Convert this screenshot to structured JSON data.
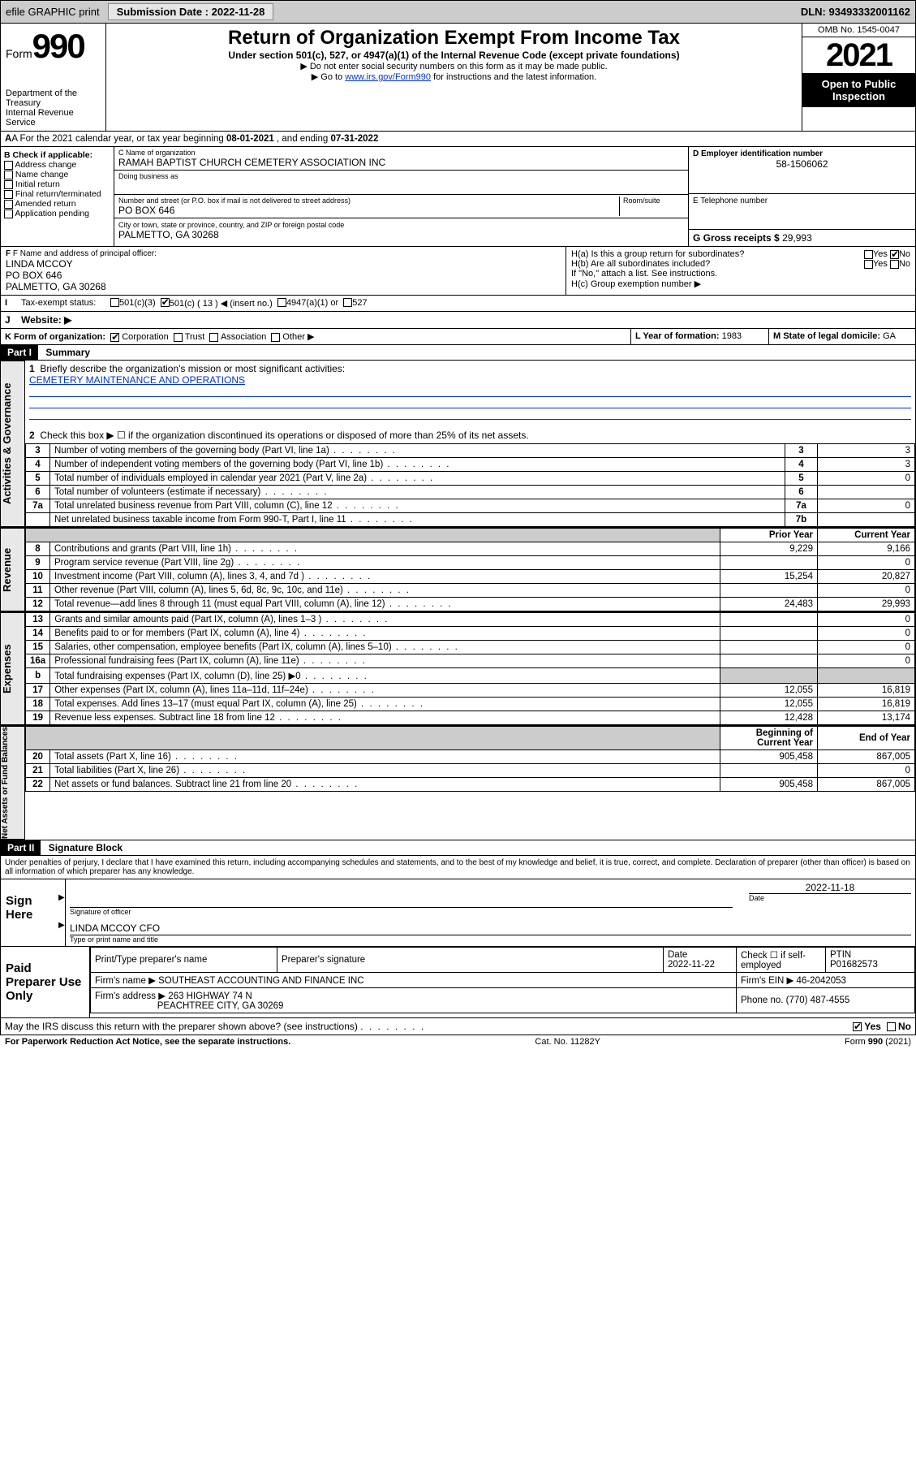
{
  "toolbar": {
    "efile": "efile GRAPHIC print",
    "submission_label": "Submission Date : 2022-11-28",
    "dln_label": "DLN: 93493332001162"
  },
  "header": {
    "form_word": "Form",
    "form_num": "990",
    "title": "Return of Organization Exempt From Income Tax",
    "sub1": "Under section 501(c), 527, or 4947(a)(1) of the Internal Revenue Code (except private foundations)",
    "sub2": "▶ Do not enter social security numbers on this form as it may be made public.",
    "sub3_pre": "▶ Go to ",
    "sub3_link": "www.irs.gov/Form990",
    "sub3_post": " for instructions and the latest information.",
    "dept": "Department of the Treasury",
    "irs": "Internal Revenue Service",
    "omb": "OMB No. 1545-0047",
    "year": "2021",
    "open": "Open to Public Inspection"
  },
  "A": {
    "text_pre": "A For the 2021 calendar year, or tax year beginning ",
    "begin": "08-01-2021",
    "mid": " , and ending ",
    "end": "07-31-2022"
  },
  "B": {
    "label": "B Check if applicable:",
    "items": [
      "Address change",
      "Name change",
      "Initial return",
      "Final return/terminated",
      "Amended return",
      "Application pending"
    ]
  },
  "C": {
    "name_lbl": "C Name of organization",
    "name": "RAMAH BAPTIST CHURCH CEMETERY ASSOCIATION INC",
    "dba_lbl": "Doing business as",
    "addr_lbl": "Number and street (or P.O. box if mail is not delivered to street address)",
    "room_lbl": "Room/suite",
    "addr": "PO BOX 646",
    "city_lbl": "City or town, state or province, country, and ZIP or foreign postal code",
    "city": "PALMETTO, GA  30268"
  },
  "D": {
    "lbl": "D Employer identification number",
    "val": "58-1506062"
  },
  "E": {
    "lbl": "E Telephone number",
    "val": ""
  },
  "G": {
    "lbl": "G Gross receipts $",
    "val": "29,993"
  },
  "F": {
    "lbl": "F Name and address of principal officer:",
    "name": "LINDA MCCOY",
    "addr1": "PO BOX 646",
    "addr2": "PALMETTO, GA  30268"
  },
  "H": {
    "a": "H(a)  Is this a group return for subordinates?",
    "b": "H(b)  Are all subordinates included?",
    "b_note": "If \"No,\" attach a list. See instructions.",
    "c": "H(c)  Group exemption number ▶",
    "yes": "Yes",
    "no": "No"
  },
  "I": {
    "lbl": "Tax-exempt status:",
    "opts": [
      "501(c)(3)",
      "501(c) ( 13 ) ◀ (insert no.)",
      "4947(a)(1) or",
      "527"
    ],
    "checked_index": 1
  },
  "J": {
    "lbl": "Website: ▶"
  },
  "K": {
    "lbl": "K Form of organization:",
    "opts": [
      "Corporation",
      "Trust",
      "Association",
      "Other ▶"
    ],
    "checked_index": 0
  },
  "L": {
    "lbl": "L Year of formation:",
    "val": "1983"
  },
  "M": {
    "lbl": "M State of legal domicile:",
    "val": "GA"
  },
  "partI": {
    "header": "Part I",
    "title": "Summary"
  },
  "summary": {
    "line1_lbl": "Briefly describe the organization's mission or most significant activities:",
    "line1_val": "CEMETERY MAINTENANCE AND OPERATIONS",
    "line2": "Check this box ▶ ☐  if the organization discontinued its operations or disposed of more than 25% of its net assets.",
    "lines_gov": [
      {
        "n": "3",
        "t": "Number of voting members of the governing body (Part VI, line 1a)",
        "box": "3",
        "v": "3"
      },
      {
        "n": "4",
        "t": "Number of independent voting members of the governing body (Part VI, line 1b)",
        "box": "4",
        "v": "3"
      },
      {
        "n": "5",
        "t": "Total number of individuals employed in calendar year 2021 (Part V, line 2a)",
        "box": "5",
        "v": "0"
      },
      {
        "n": "6",
        "t": "Total number of volunteers (estimate if necessary)",
        "box": "6",
        "v": ""
      },
      {
        "n": "7a",
        "t": "Total unrelated business revenue from Part VIII, column (C), line 12",
        "box": "7a",
        "v": "0"
      },
      {
        "n": "",
        "t": "Net unrelated business taxable income from Form 990-T, Part I, line 11",
        "box": "7b",
        "v": ""
      }
    ],
    "col_prior": "Prior Year",
    "col_current": "Current Year",
    "revenue": [
      {
        "n": "8",
        "t": "Contributions and grants (Part VIII, line 1h)",
        "p": "9,229",
        "c": "9,166"
      },
      {
        "n": "9",
        "t": "Program service revenue (Part VIII, line 2g)",
        "p": "",
        "c": "0"
      },
      {
        "n": "10",
        "t": "Investment income (Part VIII, column (A), lines 3, 4, and 7d )",
        "p": "15,254",
        "c": "20,827"
      },
      {
        "n": "11",
        "t": "Other revenue (Part VIII, column (A), lines 5, 6d, 8c, 9c, 10c, and 11e)",
        "p": "",
        "c": "0"
      },
      {
        "n": "12",
        "t": "Total revenue—add lines 8 through 11 (must equal Part VIII, column (A), line 12)",
        "p": "24,483",
        "c": "29,993"
      }
    ],
    "expenses": [
      {
        "n": "13",
        "t": "Grants and similar amounts paid (Part IX, column (A), lines 1–3 )",
        "p": "",
        "c": "0"
      },
      {
        "n": "14",
        "t": "Benefits paid to or for members (Part IX, column (A), line 4)",
        "p": "",
        "c": "0"
      },
      {
        "n": "15",
        "t": "Salaries, other compensation, employee benefits (Part IX, column (A), lines 5–10)",
        "p": "",
        "c": "0"
      },
      {
        "n": "16a",
        "t": "Professional fundraising fees (Part IX, column (A), line 11e)",
        "p": "",
        "c": "0"
      },
      {
        "n": "b",
        "t": "Total fundraising expenses (Part IX, column (D), line 25) ▶0",
        "p": "shade",
        "c": "shade"
      },
      {
        "n": "17",
        "t": "Other expenses (Part IX, column (A), lines 11a–11d, 11f–24e)",
        "p": "12,055",
        "c": "16,819"
      },
      {
        "n": "18",
        "t": "Total expenses. Add lines 13–17 (must equal Part IX, column (A), line 25)",
        "p": "12,055",
        "c": "16,819"
      },
      {
        "n": "19",
        "t": "Revenue less expenses. Subtract line 18 from line 12",
        "p": "12,428",
        "c": "13,174"
      }
    ],
    "col_begin": "Beginning of Current Year",
    "col_end": "End of Year",
    "netassets": [
      {
        "n": "20",
        "t": "Total assets (Part X, line 16)",
        "p": "905,458",
        "c": "867,005"
      },
      {
        "n": "21",
        "t": "Total liabilities (Part X, line 26)",
        "p": "",
        "c": "0"
      },
      {
        "n": "22",
        "t": "Net assets or fund balances. Subtract line 21 from line 20",
        "p": "905,458",
        "c": "867,005"
      }
    ],
    "tabs": {
      "gov": "Activities & Governance",
      "rev": "Revenue",
      "exp": "Expenses",
      "net": "Net Assets or Fund Balances"
    }
  },
  "partII": {
    "header": "Part II",
    "title": "Signature Block"
  },
  "sig": {
    "penalty": "Under penalties of perjury, I declare that I have examined this return, including accompanying schedules and statements, and to the best of my knowledge and belief, it is true, correct, and complete. Declaration of preparer (other than officer) is based on all information of which preparer has any knowledge.",
    "sign_here": "Sign Here",
    "sig_officer_lbl": "Signature of officer",
    "date_lbl": "Date",
    "date_val": "2022-11-18",
    "name_title": "LINDA MCCOY CFO",
    "name_title_lbl": "Type or print name and title",
    "paid": "Paid Preparer Use Only",
    "prep_name_lbl": "Print/Type preparer's name",
    "prep_sig_lbl": "Preparer's signature",
    "prep_date_lbl": "Date",
    "prep_date": "2022-11-22",
    "self_emp": "Check ☐ if self-employed",
    "ptin_lbl": "PTIN",
    "ptin": "P01682573",
    "firm_name_lbl": "Firm's name   ▶",
    "firm_name": "SOUTHEAST ACCOUNTING AND FINANCE INC",
    "firm_ein_lbl": "Firm's EIN ▶",
    "firm_ein": "46-2042053",
    "firm_addr_lbl": "Firm's address ▶",
    "firm_addr1": "263 HIGHWAY 74 N",
    "firm_addr2": "PEACHTREE CITY, GA  30269",
    "phone_lbl": "Phone no.",
    "phone": "(770) 487-4555",
    "discuss": "May the IRS discuss this return with the preparer shown above? (see instructions)",
    "discuss_yes": true
  },
  "footer": {
    "left": "For Paperwork Reduction Act Notice, see the separate instructions.",
    "mid": "Cat. No. 11282Y",
    "right": "Form 990 (2021)"
  },
  "colors": {
    "link": "#0033cc",
    "shade": "#cccccc",
    "black": "#000000"
  }
}
